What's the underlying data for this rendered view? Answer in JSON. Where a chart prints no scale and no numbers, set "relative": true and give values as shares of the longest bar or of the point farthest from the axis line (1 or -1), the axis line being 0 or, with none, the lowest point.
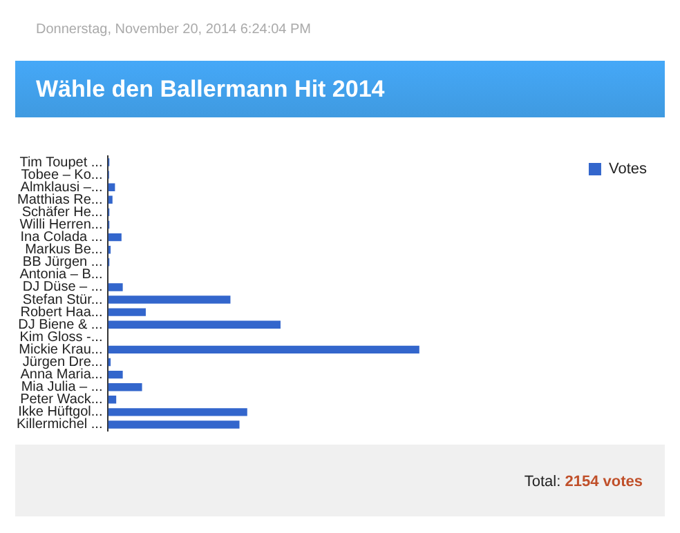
{
  "chart_data": {
    "type": "bar",
    "orientation": "horizontal",
    "relative": true,
    "title": "Wähle den Ballermann Hit 2014",
    "annotations": [
      "Donnerstag, November 20, 2014 6:24:04 PM",
      "Total:",
      "2154 votes"
    ],
    "categories": [
      "Tim Toupet ...",
      "Tobee – Ko...",
      "Almklausi –...",
      "Matthias Re...",
      "Schäfer He...",
      "Willi Herren...",
      "Ina Colada ...",
      "Markus Be...",
      "BB Jürgen ...",
      "Antonia – B...",
      "DJ Düse – ...",
      "Stefan Stür...",
      "Robert Haa...",
      "DJ Biene & ...",
      "Kim Gloss -...",
      "Mickie Krau...",
      "Jürgen Dre...",
      "Anna Maria...",
      "Mia Julia – ...",
      "Peter Wack...",
      "Ikke Hüftgol...",
      "Killermichel ..."
    ],
    "series": [
      {
        "name": "Votes",
        "color": "#3366cc",
        "values": [
          0.004,
          0.003,
          0.022,
          0.014,
          0.004,
          0.004,
          0.043,
          0.008,
          0.004,
          0,
          0.047,
          0.393,
          0.121,
          0.554,
          0,
          1,
          0.008,
          0.047,
          0.109,
          0.026,
          0.447,
          0.422
        ]
      }
    ],
    "legend": "top right"
  }
}
